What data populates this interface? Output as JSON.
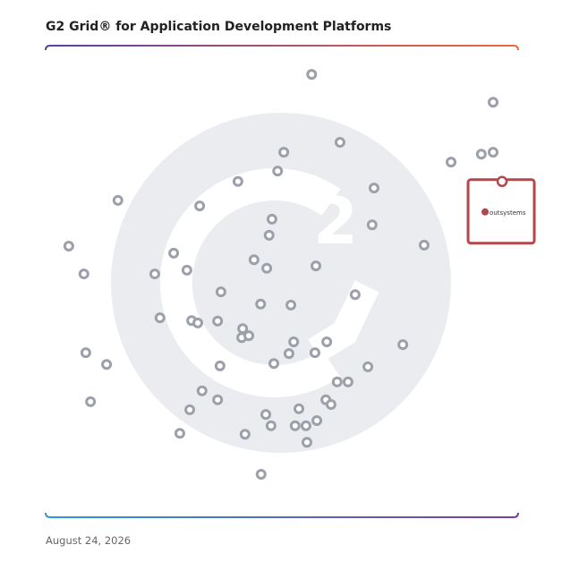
{
  "chart_data": {
    "type": "scatter",
    "title": "G2 Grid® for Application Development Platforms",
    "date": "August 24, 2026",
    "xlim": [
      0,
      100
    ],
    "ylim": [
      0,
      100
    ],
    "series": [
      {
        "color": "#9ca0aa",
        "x": [
          56.3,
          94.7,
          62.3,
          50.4,
          94.7,
          92.2,
          85.8,
          49.1,
          40.7,
          69.5,
          15.3,
          32.6,
          47.9,
          69.1,
          47.3,
          4.9,
          80.1,
          27.1,
          44.1,
          57.2,
          46.8,
          29.9,
          23.1,
          8.1,
          37.1,
          65.5,
          45.5,
          51.9,
          24.2,
          30.9,
          32.2,
          36.4,
          41.7,
          41.5,
          43.0,
          52.5,
          59.5,
          75.6,
          8.5,
          51.5,
          57.0,
          12.9,
          36.9,
          48.3,
          68.2,
          61.7,
          64.0,
          33.1,
          36.4,
          59.3,
          9.5,
          60.4,
          30.5,
          53.6,
          46.6,
          57.4,
          47.7,
          52.8,
          55.1,
          28.4,
          42.2,
          55.3,
          45.6
        ],
        "values": [
          93.9,
          88.0,
          79.5,
          77.4,
          77.4,
          77.0,
          75.3,
          73.4,
          71.2,
          69.8,
          67.2,
          66.0,
          63.2,
          62.0,
          59.8,
          57.5,
          57.7,
          56.0,
          54.6,
          53.3,
          52.8,
          52.4,
          51.6,
          51.6,
          47.8,
          47.2,
          45.2,
          45.0,
          42.3,
          41.7,
          41.2,
          41.6,
          40.0,
          38.1,
          38.5,
          37.2,
          37.2,
          36.6,
          34.9,
          34.7,
          34.9,
          32.4,
          32.1,
          32.6,
          31.9,
          28.7,
          28.7,
          26.8,
          24.9,
          24.9,
          24.5,
          23.9,
          22.8,
          23.0,
          21.8,
          20.5,
          19.4,
          19.4,
          19.4,
          17.8,
          17.6,
          15.9,
          9.1
        ]
      },
      {
        "name": "outsystems",
        "color": "#b5474b",
        "x": [
          96.6
        ],
        "values": [
          71.2
        ]
      }
    ]
  }
}
